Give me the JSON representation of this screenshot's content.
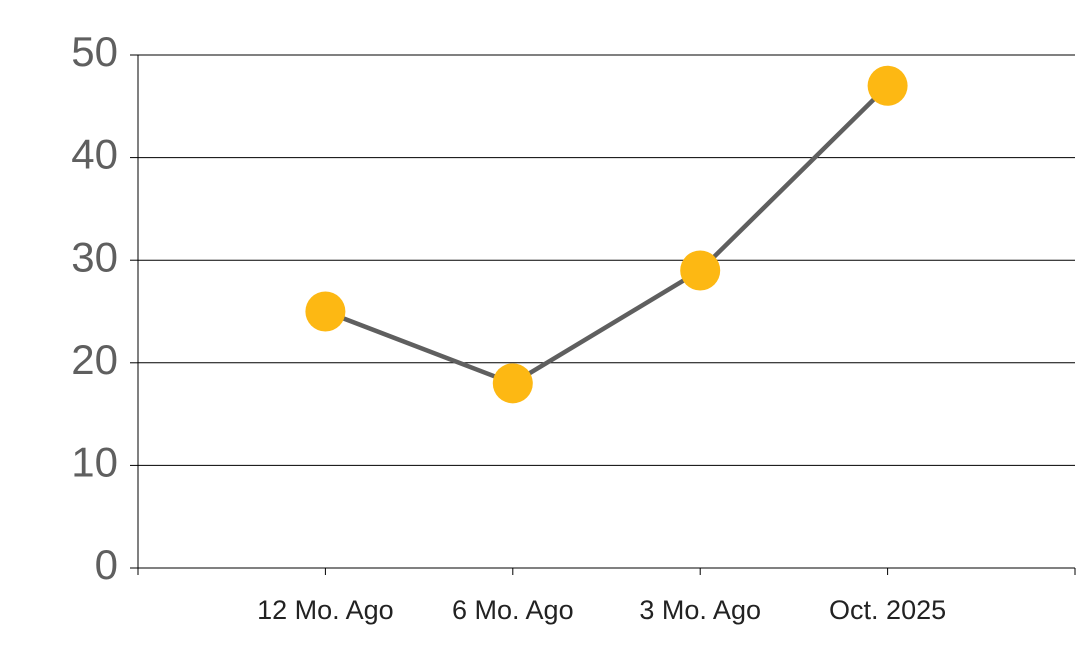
{
  "chart_data": {
    "type": "line",
    "categories": [
      "12 Mo. Ago",
      "6 Mo. Ago",
      "3 Mo. Ago",
      "Oct. 2025"
    ],
    "values": [
      25,
      18,
      29,
      47
    ],
    "color": "#fdb813",
    "line_color": "#5f5f5f",
    "ylim": [
      0,
      50
    ],
    "yticks": [
      0,
      10,
      20,
      30,
      40,
      50
    ],
    "grid": true
  }
}
